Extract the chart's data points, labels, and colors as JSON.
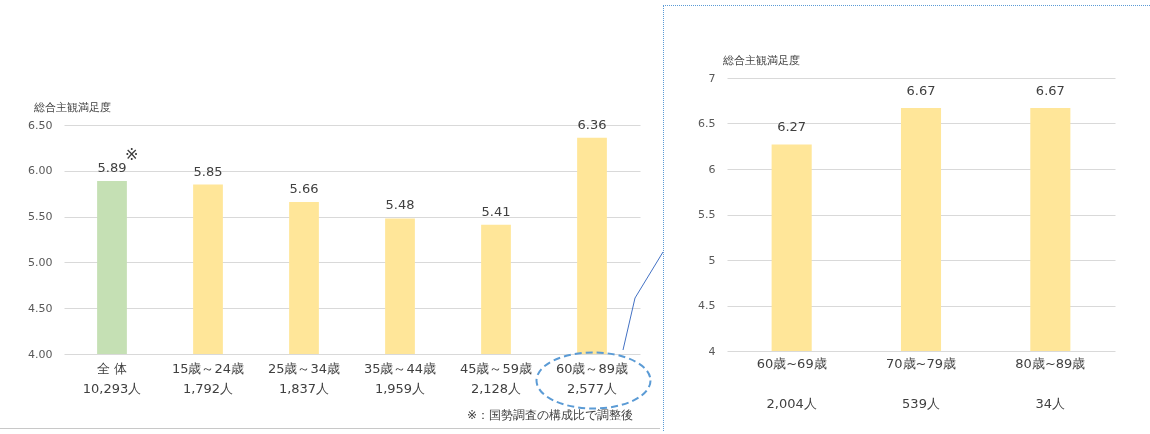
{
  "chart_data": [
    {
      "type": "bar",
      "ylabel": "総合主観満足度",
      "categories": [
        "全 体\n10,293人",
        "15歳～24歳\n1,792人",
        "25歳～34歳\n1,837人",
        "35歳～44歳\n1,959人",
        "45歳～59歳\n2,128人",
        "60歳～89歳\n2,577人"
      ],
      "values": [
        5.89,
        5.85,
        5.66,
        5.48,
        5.41,
        6.36
      ],
      "colors": [
        "#c5e0b4",
        "#ffe699",
        "#ffe699",
        "#ffe699",
        "#ffe699",
        "#ffe699"
      ],
      "ylim": [
        4,
        6.5
      ],
      "yticks": [
        {
          "value": 4,
          "label": "4.00"
        },
        {
          "value": 4.5,
          "label": "4.50"
        },
        {
          "value": 5,
          "label": "5.00"
        },
        {
          "value": 5.5,
          "label": "5.50"
        },
        {
          "value": 6,
          "label": "6.00"
        },
        {
          "value": 6.5,
          "label": "6.50"
        }
      ],
      "grid": "y",
      "data_labels": true,
      "annotations": [
        {
          "text": "※",
          "x": "全 体\n10,293人",
          "y": 5.89
        },
        "※：国勢調査の構成比で調整後"
      ]
    },
    {
      "type": "bar",
      "ylabel": "総合主観満足度",
      "categories": [
        "60歳~69歳\n2,004人",
        "70歳~79歳\n539人",
        "80歳~89歳\n34人"
      ],
      "values": [
        6.27,
        6.67,
        6.67
      ],
      "color": "#ffe699",
      "ylim": [
        4,
        7
      ],
      "yticks": [
        4,
        4.5,
        5,
        5.5,
        6,
        6.5,
        7
      ],
      "grid": "y",
      "data_labels": true
    }
  ]
}
